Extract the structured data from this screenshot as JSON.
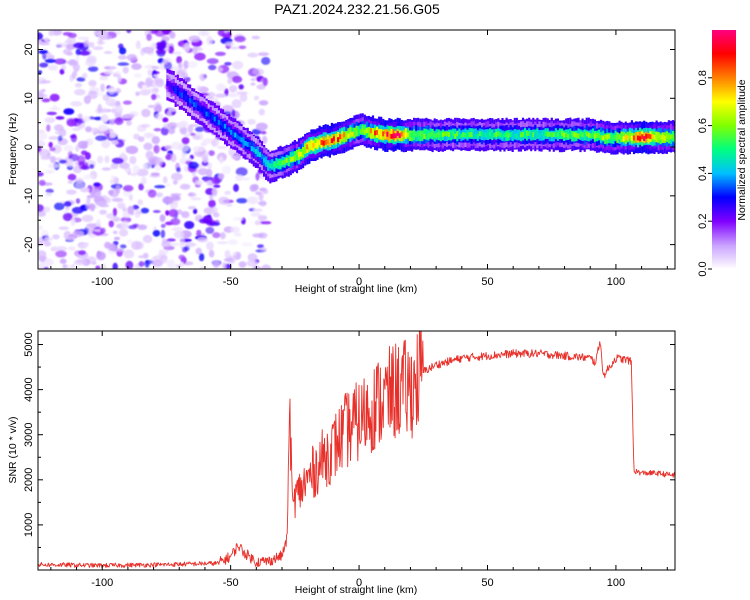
{
  "title": "PAZ1.2024.232.21.56.G05",
  "chart_data": [
    {
      "type": "heatmap",
      "xlabel": "Height of straight line (km)",
      "ylabel": "Frequency (Hz)",
      "xlim": [
        -125,
        123
      ],
      "ylim": [
        -25,
        24
      ],
      "xticks": [
        -100,
        -50,
        0,
        50,
        100
      ],
      "xtick_labels": [
        "-100",
        "-50",
        "0",
        "50",
        "100"
      ],
      "yticks": [
        -20,
        -10,
        0,
        10,
        20
      ],
      "ytick_labels": [
        "-20",
        "-10",
        "0",
        "10",
        "20"
      ],
      "colorbar": {
        "label": "Normalized spectral amplitude",
        "range": [
          0,
          1
        ],
        "ticks": [
          0.0,
          0.2,
          0.4,
          0.6,
          0.8
        ],
        "tick_labels": [
          "0.0",
          "0.2",
          "0.4",
          "0.6",
          "0.8"
        ],
        "colormap": [
          "#ffffff",
          "#c9a0ff",
          "#8000ff",
          "#0000ff",
          "#00c0ff",
          "#00ff80",
          "#80ff00",
          "#ffff00",
          "#ff8000",
          "#ff0000",
          "#ff0080"
        ]
      },
      "ridge": {
        "x": [
          -75,
          -70,
          -65,
          -60,
          -55,
          -50,
          -45,
          -40,
          -37,
          -35,
          -30,
          -25,
          -20,
          -15,
          -10,
          -5,
          0,
          5,
          10,
          15,
          20,
          30,
          40,
          50,
          60,
          70,
          80,
          90,
          95,
          100,
          105,
          110,
          115,
          123
        ],
        "y": [
          13,
          11,
          9,
          7,
          5,
          3,
          1,
          -1,
          -3,
          -4,
          -3,
          -2,
          0,
          1,
          1.5,
          2.5,
          3.5,
          3,
          2.5,
          2.5,
          2.5,
          2.5,
          2.5,
          2.5,
          2.5,
          2.5,
          2.5,
          2.5,
          2,
          2,
          2,
          2,
          2,
          2
        ],
        "amplitude": [
          0.25,
          0.3,
          0.32,
          0.32,
          0.33,
          0.35,
          0.38,
          0.4,
          0.45,
          0.42,
          0.55,
          0.6,
          0.75,
          0.8,
          0.85,
          0.7,
          0.55,
          0.75,
          0.85,
          0.9,
          0.6,
          0.55,
          0.5,
          0.52,
          0.5,
          0.5,
          0.55,
          0.55,
          0.6,
          0.6,
          0.7,
          0.9,
          0.7,
          0.6
        ]
      },
      "noise_region_x": [
        -125,
        -36
      ]
    },
    {
      "type": "line",
      "xlabel": "Height of straight line (km)",
      "ylabel": "SNR (10 * v/v)",
      "xlim": [
        -125,
        123
      ],
      "ylim": [
        0,
        5300
      ],
      "xticks": [
        -100,
        -50,
        0,
        50,
        100
      ],
      "xtick_labels": [
        "-100",
        "-50",
        "0",
        "50",
        "100"
      ],
      "yticks": [
        1000,
        2000,
        3000,
        4000,
        5000
      ],
      "ytick_labels": [
        "1000",
        "2000",
        "3000",
        "4000",
        "5000"
      ],
      "color": "#e8302a",
      "series": [
        {
          "x": [
            -125,
            -100,
            -75,
            -55,
            -50,
            -47,
            -45,
            -40,
            -35,
            -30,
            -28,
            -27,
            -26,
            -25,
            -20,
            -15,
            -10,
            -5,
            0,
            5,
            10,
            15,
            20,
            25,
            30,
            40,
            50,
            60,
            70,
            80,
            90,
            92,
            94,
            95,
            100,
            105,
            106,
            107,
            110,
            115,
            123
          ],
          "y": [
            120,
            100,
            120,
            150,
            300,
            550,
            400,
            180,
            200,
            320,
            700,
            3800,
            1400,
            1600,
            2000,
            2400,
            2700,
            3100,
            3300,
            3600,
            3800,
            4000,
            4000,
            4400,
            4550,
            4700,
            4750,
            4800,
            4800,
            4750,
            4700,
            4600,
            5100,
            4300,
            4700,
            4650,
            4600,
            2200,
            2150,
            2150,
            2100
          ]
        }
      ]
    }
  ]
}
